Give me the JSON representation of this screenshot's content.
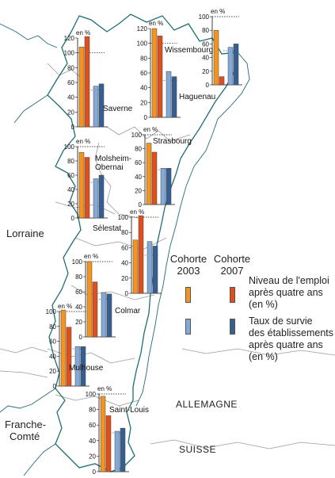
{
  "colors": {
    "emploi_2003": "#f39320",
    "emploi_2007": "#e04e1c",
    "survie_2003": "#84a9d6",
    "survie_2007": "#355f93",
    "border": "#1f6e74"
  },
  "unit_label": "en %",
  "y_ticks": [
    "0",
    "20",
    "40",
    "60",
    "80",
    "100",
    "120"
  ],
  "regions": {
    "lorraine": "Lorraine",
    "franche_comte_1": "Franche-",
    "franche_comte_2": "Comté",
    "allemagne": "ALLEMAGNE",
    "suisse": "SUISSE"
  },
  "legend": {
    "cohort_2003": [
      "Cohorte",
      "2003"
    ],
    "cohort_2007": [
      "Cohorte",
      "2007"
    ],
    "emploi": [
      "Niveau de l'emploi",
      "après quatre ans",
      "(en %)"
    ],
    "survie": [
      "Taux de survie",
      "des établissements",
      "après quatre ans",
      "(en %)"
    ]
  },
  "chart_data": [
    {
      "type": "bar",
      "city": "Saverne",
      "series": [
        {
          "name": "Niveau de l'emploi après quatre ans (en %)",
          "values": [
            108,
            122
          ]
        },
        {
          "name": "Taux de survie des établissements après quatre ans (en %)",
          "values": [
            55,
            58
          ]
        }
      ],
      "categories": [
        "Cohorte 2003",
        "Cohorte 2007"
      ],
      "ylim": [
        0,
        120
      ]
    },
    {
      "type": "bar",
      "city": "Wissembourg",
      "series": [
        {
          "name": "Niveau de l'emploi après quatre ans (en %)",
          "values": [
            120,
            110
          ]
        },
        {
          "name": "Taux de survie des établissements après quatre ans (en %)",
          "values": [
            62,
            55
          ]
        }
      ],
      "categories": [
        "Cohorte 2003",
        "Cohorte 2007"
      ],
      "ylim": [
        0,
        120
      ]
    },
    {
      "type": "bar",
      "city": "Haguenau",
      "series": [
        {
          "name": "Niveau de l'emploi après quatre ans (en %)",
          "values": [
            80,
            12
          ]
        },
        {
          "name": "Taux de survie des établissements après quatre ans (en %)",
          "values": [
            55,
            60
          ]
        }
      ],
      "categories": [
        "Cohorte 2003",
        "Cohorte 2007"
      ],
      "ylim": [
        0,
        100
      ]
    },
    {
      "type": "bar",
      "city": "Molsheim-Obernai",
      "series": [
        {
          "name": "Niveau de l'emploi après quatre ans (en %)",
          "values": [
            92,
            85
          ]
        },
        {
          "name": "Taux de survie des établissements après quatre ans (en %)",
          "values": [
            55,
            60
          ]
        }
      ],
      "categories": [
        "Cohorte 2003",
        "Cohorte 2007"
      ],
      "ylim": [
        0,
        100
      ]
    },
    {
      "type": "bar",
      "city": "Strasbourg",
      "series": [
        {
          "name": "Niveau de l'emploi après quatre ans (en %)",
          "values": [
            88,
            75
          ]
        },
        {
          "name": "Taux de survie des établissements après quatre ans (en %)",
          "values": [
            52,
            52
          ]
        }
      ],
      "categories": [
        "Cohorte 2003",
        "Cohorte 2007"
      ],
      "ylim": [
        0,
        100
      ]
    },
    {
      "type": "bar",
      "city": "Sélestat",
      "series": [
        {
          "name": "Niveau de l'emploi après quatre ans (en %)",
          "values": [
            70,
            102
          ]
        },
        {
          "name": "Taux de survie des établissements après quatre ans (en %)",
          "values": [
            68,
            62
          ]
        }
      ],
      "categories": [
        "Cohorte 2003",
        "Cohorte 2007"
      ],
      "ylim": [
        0,
        100
      ]
    },
    {
      "type": "bar",
      "city": "Colmar",
      "series": [
        {
          "name": "Niveau de l'emploi après quatre ans (en %)",
          "values": [
            100,
            73
          ]
        },
        {
          "name": "Taux de survie des établissements après quatre ans (en %)",
          "values": [
            59,
            57
          ]
        }
      ],
      "categories": [
        "Cohorte 2003",
        "Cohorte 2007"
      ],
      "ylim": [
        0,
        100
      ]
    },
    {
      "type": "bar",
      "city": "Mulhouse",
      "series": [
        {
          "name": "Niveau de l'emploi après quatre ans (en %)",
          "values": [
            102,
            79
          ]
        },
        {
          "name": "Taux de survie des établissements après quatre ans (en %)",
          "values": [
            53,
            53
          ]
        }
      ],
      "categories": [
        "Cohorte 2003",
        "Cohorte 2007"
      ],
      "ylim": [
        0,
        100
      ]
    },
    {
      "type": "bar",
      "city": "Saint-Louis",
      "series": [
        {
          "name": "Niveau de l'emploi après quatre ans (en %)",
          "values": [
            97,
            72
          ]
        },
        {
          "name": "Taux de survie des établissements après quatre ans (en %)",
          "values": [
            52,
            56
          ]
        }
      ],
      "categories": [
        "Cohorte 2003",
        "Cohorte 2007"
      ],
      "ylim": [
        0,
        100
      ]
    }
  ]
}
